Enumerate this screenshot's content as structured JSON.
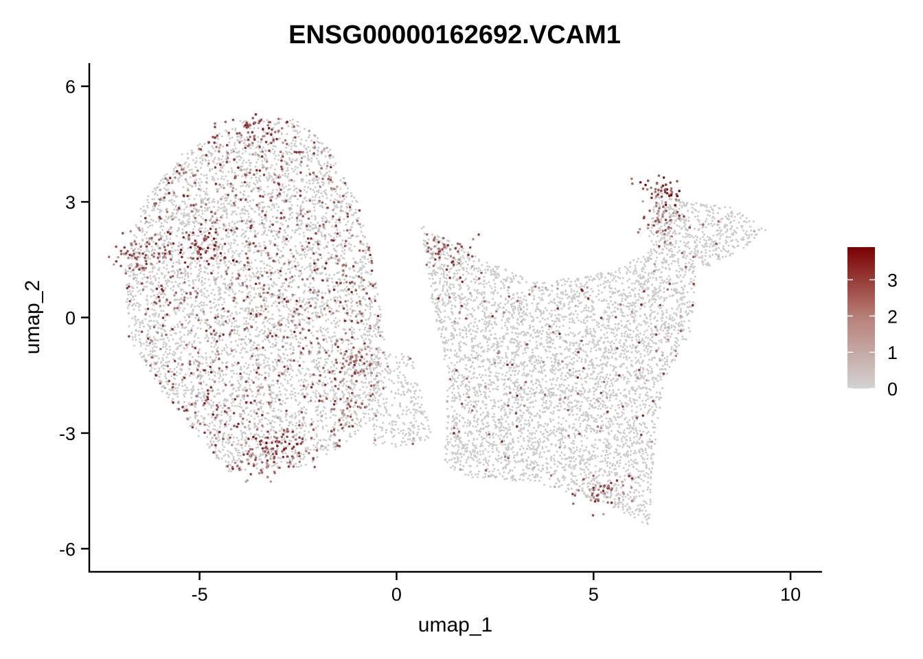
{
  "chart_data": {
    "type": "scatter",
    "title": "ENSG00000162692.VCAM1",
    "xlabel": "umap_1",
    "ylabel": "umap_2",
    "xlim": [
      -7.8,
      10.8
    ],
    "ylim": [
      -6.6,
      6.6
    ],
    "x_ticks": [
      -5,
      0,
      5,
      10
    ],
    "x_tick_labels": [
      "-5",
      "0",
      "5",
      "10"
    ],
    "y_ticks": [
      -6,
      -3,
      0,
      3,
      6
    ],
    "y_tick_labels": [
      "-6",
      "-3",
      "0",
      "3",
      "6"
    ],
    "grid": false,
    "legend_position": "right",
    "colorbar": {
      "min": 0,
      "max": 3.9,
      "ticks": [
        0,
        1,
        2,
        3
      ],
      "tick_labels": [
        "0",
        "1",
        "2",
        "3"
      ],
      "low_color": "#d3d3d3",
      "high_color": "#7a0000"
    },
    "point_color_unexpressed": "#cccccc",
    "expression_hotspots": [
      {
        "x": -2.8,
        "y": -3.3,
        "value": 3.8
      },
      {
        "x": -3.5,
        "y": -3.8,
        "value": 3.0
      },
      {
        "x": -4.9,
        "y": 1.8,
        "value": 3.9
      },
      {
        "x": -3.6,
        "y": 4.9,
        "value": 3.5
      },
      {
        "x": -6.6,
        "y": 1.7,
        "value": 3.2
      },
      {
        "x": 6.6,
        "y": 3.3,
        "value": 3.9
      },
      {
        "x": 6.8,
        "y": 2.6,
        "value": 3.0
      },
      {
        "x": 1.3,
        "y": 1.7,
        "value": 3.2
      },
      {
        "x": 5.2,
        "y": -4.6,
        "value": 3.1
      },
      {
        "x": -1.1,
        "y": -1.2,
        "value": 2.8
      }
    ]
  }
}
